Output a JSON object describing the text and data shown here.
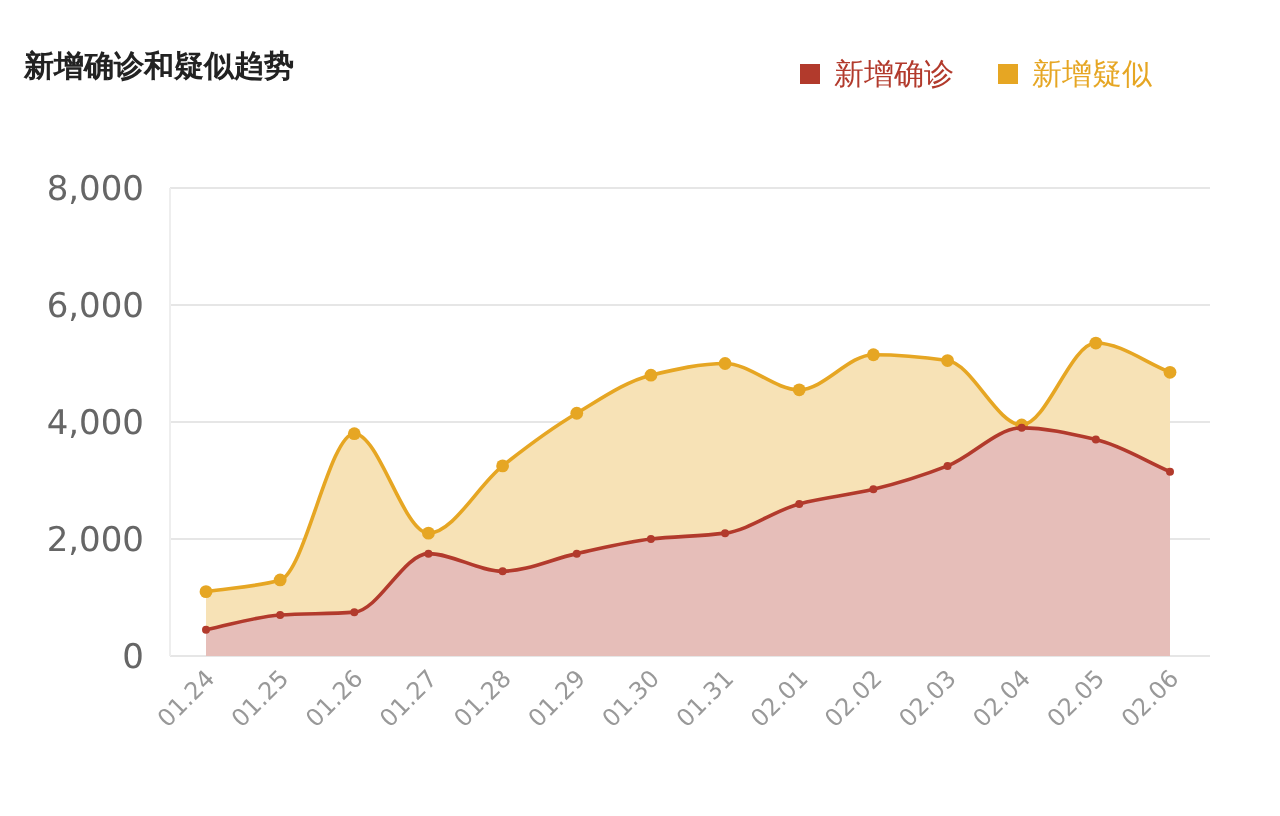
{
  "chart_data": {
    "type": "area",
    "title": "新增确诊和疑似趋势",
    "categories": [
      "01.24",
      "01.25",
      "01.26",
      "01.27",
      "01.28",
      "01.29",
      "01.30",
      "01.31",
      "02.01",
      "02.02",
      "02.03",
      "02.04",
      "02.05",
      "02.06"
    ],
    "series": [
      {
        "name": "新增疑似",
        "color": "#e6a623",
        "values": [
          1100,
          1300,
          3800,
          2100,
          3250,
          4150,
          4800,
          5000,
          4550,
          5150,
          5050,
          3950,
          5350,
          4850
        ]
      },
      {
        "name": "新增确诊",
        "color": "#b23a2c",
        "values": [
          450,
          700,
          750,
          1750,
          1450,
          1750,
          2000,
          2100,
          2600,
          2850,
          3250,
          3900,
          3700,
          3150
        ]
      }
    ],
    "ylim": [
      0,
      8000
    ],
    "yticks": [
      {
        "value": 0,
        "label": "0"
      },
      {
        "value": 2000,
        "label": "2,000"
      },
      {
        "value": 4000,
        "label": "4,000"
      },
      {
        "value": 6000,
        "label": "6,000"
      },
      {
        "value": 8000,
        "label": "8,000"
      }
    ],
    "grid": "y",
    "legend": "top right",
    "marker": "circle",
    "line_style": "solid"
  }
}
